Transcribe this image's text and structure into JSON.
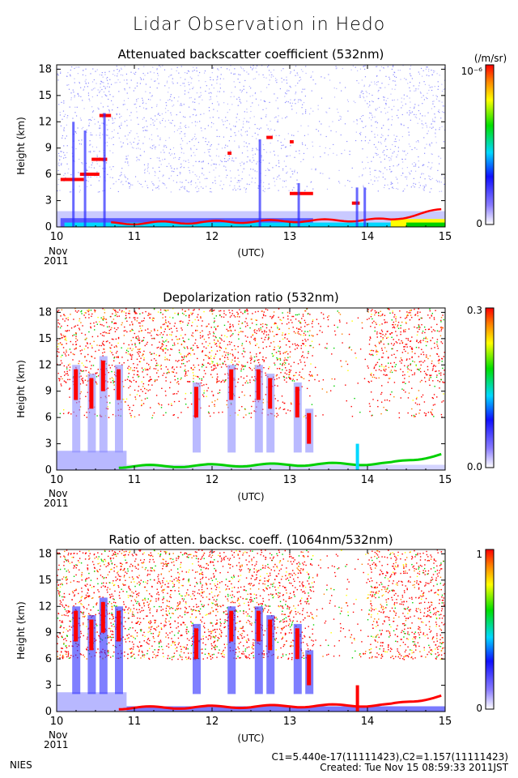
{
  "main_title": "Lidar Observation in Hedo",
  "footer": {
    "org": "NIES",
    "constants": "C1=5.440e-17(11111423),C2=1.157(11111423)",
    "created": "Created: Tue Nov 15 08:59:33 2011JST"
  },
  "chart_data": [
    {
      "type": "heatmap",
      "title": "Attenuated backscatter coefficient (532nm)",
      "ylabel": "Height (km)",
      "xlabel": "(UTC)",
      "x_ticks": [
        "10",
        "11",
        "12",
        "13",
        "14",
        "15"
      ],
      "x_sublabel_1": "Nov",
      "x_sublabel_2": "2011",
      "y_ticks": [
        "0",
        "3",
        "6",
        "9",
        "12",
        "15",
        "18"
      ],
      "xlim": [
        10,
        15
      ],
      "ylim": [
        0,
        18.5
      ],
      "colorbar": {
        "unit": "(/m/sr)",
        "max_label": "10⁻⁶",
        "min_label": "0"
      },
      "variant": "backscatter"
    },
    {
      "type": "heatmap",
      "title": "Depolarization ratio (532nm)",
      "ylabel": "Height (km)",
      "xlabel": "(UTC)",
      "x_ticks": [
        "10",
        "11",
        "12",
        "13",
        "14",
        "15"
      ],
      "x_sublabel_1": "Nov",
      "x_sublabel_2": "2011",
      "y_ticks": [
        "0",
        "3",
        "6",
        "9",
        "12",
        "15",
        "18"
      ],
      "xlim": [
        10,
        15
      ],
      "ylim": [
        0,
        18.5
      ],
      "colorbar": {
        "unit": "",
        "max_label": "0.3",
        "min_label": "0.0"
      },
      "variant": "depol"
    },
    {
      "type": "heatmap",
      "title": "Ratio of atten. backsc. coeff. (1064nm/532nm)",
      "ylabel": "Height (km)",
      "xlabel": "(UTC)",
      "x_ticks": [
        "10",
        "11",
        "12",
        "13",
        "14",
        "15"
      ],
      "x_sublabel_1": "Nov",
      "x_sublabel_2": "2011",
      "y_ticks": [
        "0",
        "3",
        "6",
        "9",
        "12",
        "15",
        "18"
      ],
      "xlim": [
        10,
        15
      ],
      "ylim": [
        0,
        18.5
      ],
      "colorbar": {
        "unit": "",
        "max_label": "1",
        "min_label": "0"
      },
      "variant": "ratio"
    }
  ]
}
